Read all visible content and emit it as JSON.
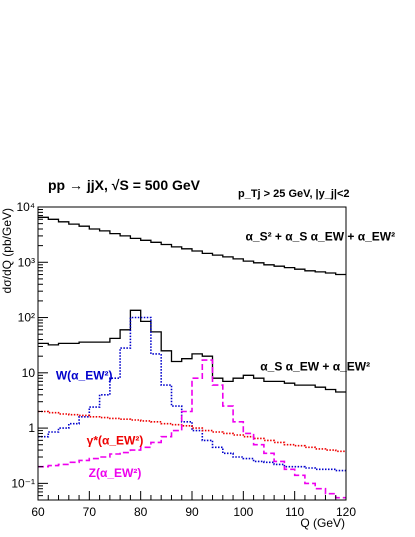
{
  "chart_data": {
    "type": "line",
    "title": "pp → jjX, √S = 500 GeV",
    "cut_label": "p_Tj > 25 GeV, |y_j|<2",
    "xlabel": "Q (GeV)",
    "ylabel": "dσ/dQ (pb/GeV)",
    "xlim": [
      60,
      120
    ],
    "ylim": [
      0.05,
      10000
    ],
    "yscale": "log",
    "x_ticks": [
      "60",
      "70",
      "80",
      "90",
      "100",
      "110",
      "120"
    ],
    "y_ticks": [
      {
        "value": 0.1,
        "label": "10⁻¹"
      },
      {
        "value": 1,
        "label": "1"
      },
      {
        "value": 10,
        "label": "10"
      },
      {
        "value": 100,
        "label": "10²"
      },
      {
        "value": 1000,
        "label": "10³"
      },
      {
        "value": 10000,
        "label": "10⁴"
      }
    ],
    "bin_edges": [
      60,
      62,
      64,
      66,
      68,
      70,
      72,
      74,
      76,
      78,
      80,
      82,
      84,
      86,
      88,
      90,
      92,
      94,
      96,
      98,
      100,
      102,
      104,
      106,
      108,
      110,
      112,
      114,
      116,
      118,
      120
    ],
    "series": [
      {
        "name": "α_S² + α_S α_EW + α_EW²",
        "color": "#000000",
        "style": "solid",
        "annotation_x": 115,
        "annotation_y": 2500,
        "values": [
          6500,
          6000,
          5400,
          4900,
          4500,
          4000,
          3700,
          3300,
          3000,
          2700,
          2500,
          2300,
          2100,
          1900,
          1750,
          1600,
          1450,
          1350,
          1250,
          1150,
          1050,
          980,
          900,
          850,
          800,
          750,
          700,
          670,
          640,
          600
        ]
      },
      {
        "name": "α_S α_EW + α_EW²",
        "color": "#000000",
        "style": "solid",
        "annotation_x": 114,
        "annotation_y": 11,
        "values": [
          34,
          32,
          34,
          34,
          36,
          36,
          36,
          42,
          60,
          135,
          85,
          55,
          25,
          16,
          18,
          22,
          20,
          8,
          7,
          8,
          9,
          8,
          7,
          7,
          6.5,
          6,
          6,
          5.5,
          5,
          4.5
        ]
      },
      {
        "name": "W(α_EW²)",
        "color": "#0000cc",
        "style": "dotted",
        "annotation_x": 69,
        "annotation_y": 7.5,
        "values": [
          0.7,
          0.85,
          1.0,
          1.2,
          1.6,
          2.4,
          4,
          8,
          28,
          100,
          100,
          22,
          6,
          2.5,
          1.3,
          0.9,
          0.6,
          0.45,
          0.35,
          0.3,
          0.28,
          0.25,
          0.24,
          0.22,
          0.2,
          0.2,
          0.19,
          0.18,
          0.18,
          0.17
        ]
      },
      {
        "name": "γ*(α_EW²)",
        "color": "#ee0000",
        "style": "dotted",
        "annotation_x": 75,
        "annotation_y": 0.5,
        "values": [
          2.0,
          1.9,
          1.8,
          1.75,
          1.7,
          1.6,
          1.55,
          1.5,
          1.45,
          1.4,
          1.35,
          1.3,
          1.2,
          1.15,
          1.1,
          1.0,
          0.9,
          0.85,
          0.8,
          0.75,
          0.7,
          0.65,
          0.6,
          0.55,
          0.5,
          0.48,
          0.45,
          0.42,
          0.4,
          0.38
        ]
      },
      {
        "name": "Z(α_EW²)",
        "color": "#ee00ee",
        "style": "dashed",
        "annotation_x": 75,
        "annotation_y": 0.13,
        "values": [
          0.2,
          0.21,
          0.22,
          0.24,
          0.26,
          0.28,
          0.3,
          0.34,
          0.36,
          0.4,
          0.45,
          0.55,
          0.7,
          0.9,
          2,
          8,
          17,
          6,
          2.5,
          1.3,
          0.8,
          0.5,
          0.35,
          0.25,
          0.18,
          0.14,
          0.1,
          0.08,
          0.065,
          0.055
        ]
      }
    ]
  }
}
